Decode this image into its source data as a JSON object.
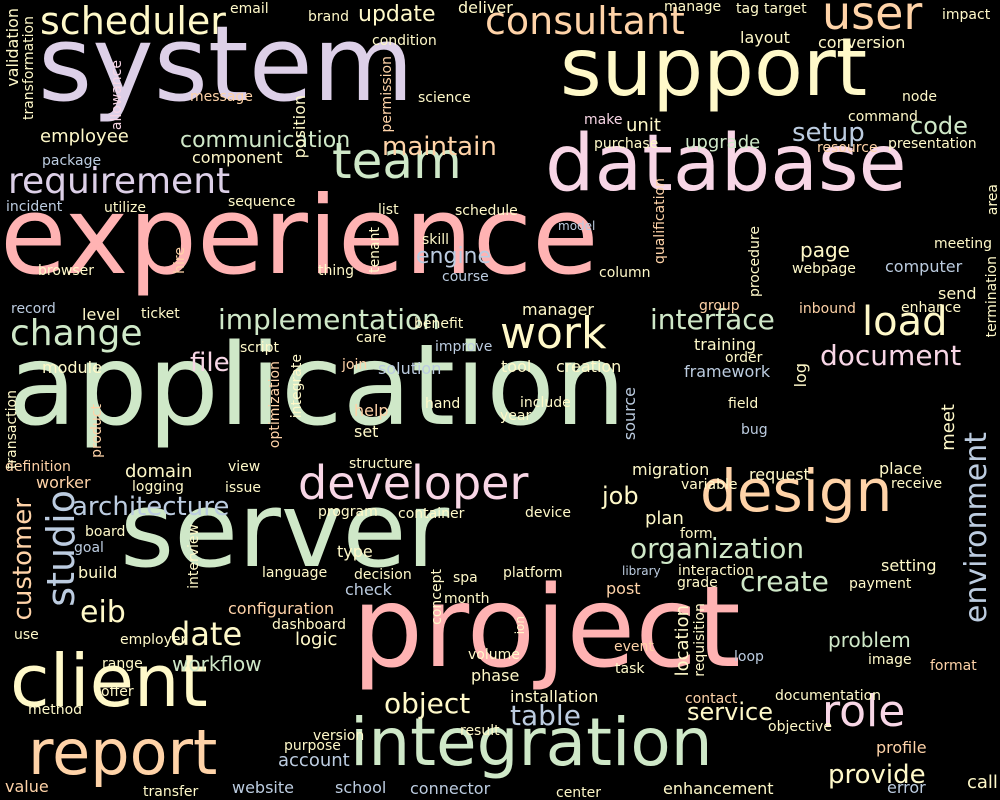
{
  "background": "#000000",
  "palette": {
    "pink": "#ffb3b3",
    "green": "#cfe8c8",
    "lavender": "#ddd0e8",
    "yellow": "#fff9c9",
    "peach": "#ffd3a8",
    "blue": "#bccce0",
    "rose": "#f8d6e6"
  },
  "words": [
    {
      "text": "experience",
      "color": "pink"
    },
    {
      "text": "application",
      "color": "green"
    },
    {
      "text": "system",
      "color": "lavender"
    },
    {
      "text": "project",
      "color": "pink"
    },
    {
      "text": "server",
      "color": "green"
    },
    {
      "text": "support",
      "color": "yellow"
    },
    {
      "text": "database",
      "color": "rose"
    },
    {
      "text": "client",
      "color": "yellow"
    },
    {
      "text": "integration",
      "color": "green"
    },
    {
      "text": "report",
      "color": "peach"
    },
    {
      "text": "design",
      "color": "peach"
    },
    {
      "text": "team",
      "color": "green"
    },
    {
      "text": "developer",
      "color": "rose"
    },
    {
      "text": "consultant",
      "color": "peach"
    },
    {
      "text": "user",
      "color": "peach"
    },
    {
      "text": "scheduler",
      "color": "yellow"
    },
    {
      "text": "requirement",
      "color": "lavender"
    },
    {
      "text": "role",
      "color": "rose"
    },
    {
      "text": "change",
      "color": "green"
    },
    {
      "text": "work",
      "color": "yellow"
    },
    {
      "text": "load",
      "color": "yellow"
    },
    {
      "text": "implementation",
      "color": "green"
    },
    {
      "text": "environment",
      "color": "blue"
    },
    {
      "text": "studio",
      "color": "blue"
    },
    {
      "text": "date",
      "color": "yellow"
    },
    {
      "text": "eib",
      "color": "yellow"
    },
    {
      "text": "customer",
      "color": "peach"
    },
    {
      "text": "interface",
      "color": "green"
    },
    {
      "text": "organization",
      "color": "green"
    },
    {
      "text": "architecture",
      "color": "blue"
    },
    {
      "text": "table",
      "color": "blue"
    },
    {
      "text": "object",
      "color": "yellow"
    },
    {
      "text": "document",
      "color": "rose"
    },
    {
      "text": "create",
      "color": "green"
    },
    {
      "text": "provide",
      "color": "yellow"
    },
    {
      "text": "maintain",
      "color": "peach"
    },
    {
      "text": "setup",
      "color": "blue"
    },
    {
      "text": "code",
      "color": "green"
    },
    {
      "text": "update",
      "color": "yellow"
    },
    {
      "text": "communication",
      "color": "green"
    },
    {
      "text": "file",
      "color": "rose"
    },
    {
      "text": "engine",
      "color": "blue"
    },
    {
      "text": "job",
      "color": "yellow"
    },
    {
      "text": "service",
      "color": "yellow"
    },
    {
      "text": "workflow",
      "color": "green"
    },
    {
      "text": "problem",
      "color": "green"
    },
    {
      "text": "page",
      "color": "yellow"
    },
    {
      "text": "upgrade",
      "color": "green"
    },
    {
      "text": "component",
      "color": "yellow"
    },
    {
      "text": "employee",
      "color": "yellow"
    },
    {
      "text": "unit",
      "color": "yellow"
    },
    {
      "text": "brand",
      "color": "yellow"
    },
    {
      "text": "deliver",
      "color": "yellow"
    },
    {
      "text": "position",
      "color": "yellow"
    },
    {
      "text": "email",
      "color": "yellow"
    },
    {
      "text": "manage",
      "color": "yellow"
    },
    {
      "text": "tag",
      "color": "yellow"
    },
    {
      "text": "target",
      "color": "yellow"
    },
    {
      "text": "impact",
      "color": "yellow"
    },
    {
      "text": "conversion",
      "color": "yellow"
    },
    {
      "text": "layout",
      "color": "yellow"
    },
    {
      "text": "condition",
      "color": "yellow"
    },
    {
      "text": "message",
      "color": "peach"
    },
    {
      "text": "science",
      "color": "yellow"
    },
    {
      "text": "node",
      "color": "yellow"
    },
    {
      "text": "command",
      "color": "yellow"
    },
    {
      "text": "resource",
      "color": "peach"
    },
    {
      "text": "presentation",
      "color": "yellow"
    },
    {
      "text": "make",
      "color": "rose"
    },
    {
      "text": "purchase",
      "color": "yellow"
    },
    {
      "text": "package",
      "color": "blue"
    },
    {
      "text": "incident",
      "color": "blue"
    },
    {
      "text": "utilize",
      "color": "yellow"
    },
    {
      "text": "sequence",
      "color": "yellow"
    },
    {
      "text": "list",
      "color": "yellow"
    },
    {
      "text": "schedule",
      "color": "yellow"
    },
    {
      "text": "skill",
      "color": "yellow"
    },
    {
      "text": "model",
      "color": "blue"
    },
    {
      "text": "browser",
      "color": "yellow"
    },
    {
      "text": "thing",
      "color": "yellow"
    },
    {
      "text": "course",
      "color": "blue"
    },
    {
      "text": "column",
      "color": "yellow"
    },
    {
      "text": "meeting",
      "color": "yellow"
    },
    {
      "text": "webpage",
      "color": "yellow"
    },
    {
      "text": "computer",
      "color": "blue"
    },
    {
      "text": "send",
      "color": "yellow"
    },
    {
      "text": "record",
      "color": "blue"
    },
    {
      "text": "level",
      "color": "yellow"
    },
    {
      "text": "ticket",
      "color": "yellow"
    },
    {
      "text": "benefit",
      "color": "yellow"
    },
    {
      "text": "manager",
      "color": "yellow"
    },
    {
      "text": "group",
      "color": "peach"
    },
    {
      "text": "inbound",
      "color": "peach"
    },
    {
      "text": "enhance",
      "color": "yellow"
    },
    {
      "text": "script",
      "color": "yellow"
    },
    {
      "text": "care",
      "color": "yellow"
    },
    {
      "text": "improve",
      "color": "blue"
    },
    {
      "text": "training",
      "color": "yellow"
    },
    {
      "text": "order",
      "color": "yellow"
    },
    {
      "text": "module",
      "color": "yellow"
    },
    {
      "text": "join",
      "color": "peach"
    },
    {
      "text": "solution",
      "color": "blue"
    },
    {
      "text": "tool",
      "color": "yellow"
    },
    {
      "text": "creation",
      "color": "yellow"
    },
    {
      "text": "framework",
      "color": "blue"
    },
    {
      "text": "hand",
      "color": "yellow"
    },
    {
      "text": "include",
      "color": "yellow"
    },
    {
      "text": "year",
      "color": "yellow"
    },
    {
      "text": "help",
      "color": "peach"
    },
    {
      "text": "set",
      "color": "yellow"
    },
    {
      "text": "field",
      "color": "yellow"
    },
    {
      "text": "bug",
      "color": "blue"
    },
    {
      "text": "meet",
      "color": "yellow"
    },
    {
      "text": "definition",
      "color": "peach"
    },
    {
      "text": "domain",
      "color": "yellow"
    },
    {
      "text": "view",
      "color": "yellow"
    },
    {
      "text": "structure",
      "color": "yellow"
    },
    {
      "text": "migration",
      "color": "yellow"
    },
    {
      "text": "request",
      "color": "yellow"
    },
    {
      "text": "place",
      "color": "yellow"
    },
    {
      "text": "worker",
      "color": "peach"
    },
    {
      "text": "logging",
      "color": "yellow"
    },
    {
      "text": "issue",
      "color": "yellow"
    },
    {
      "text": "variable",
      "color": "yellow"
    },
    {
      "text": "receive",
      "color": "yellow"
    },
    {
      "text": "program",
      "color": "yellow"
    },
    {
      "text": "container",
      "color": "yellow"
    },
    {
      "text": "device",
      "color": "yellow"
    },
    {
      "text": "board",
      "color": "yellow"
    },
    {
      "text": "goal",
      "color": "blue"
    },
    {
      "text": "plan",
      "color": "yellow"
    },
    {
      "text": "form",
      "color": "yellow"
    },
    {
      "text": "type",
      "color": "yellow"
    },
    {
      "text": "build",
      "color": "yellow"
    },
    {
      "text": "language",
      "color": "yellow"
    },
    {
      "text": "decision",
      "color": "yellow"
    },
    {
      "text": "spa",
      "color": "yellow"
    },
    {
      "text": "platform",
      "color": "yellow"
    },
    {
      "text": "library",
      "color": "blue"
    },
    {
      "text": "interaction",
      "color": "yellow"
    },
    {
      "text": "setting",
      "color": "yellow"
    },
    {
      "text": "check",
      "color": "blue"
    },
    {
      "text": "month",
      "color": "yellow"
    },
    {
      "text": "post",
      "color": "peach"
    },
    {
      "text": "grade",
      "color": "yellow"
    },
    {
      "text": "payment",
      "color": "yellow"
    },
    {
      "text": "configuration",
      "color": "peach"
    },
    {
      "text": "use",
      "color": "yellow"
    },
    {
      "text": "employer",
      "color": "yellow"
    },
    {
      "text": "dashboard",
      "color": "yellow"
    },
    {
      "text": "logic",
      "color": "yellow"
    },
    {
      "text": "event",
      "color": "peach"
    },
    {
      "text": "task",
      "color": "yellow"
    },
    {
      "text": "loop",
      "color": "blue"
    },
    {
      "text": "image",
      "color": "yellow"
    },
    {
      "text": "format",
      "color": "peach"
    },
    {
      "text": "range",
      "color": "yellow"
    },
    {
      "text": "offer",
      "color": "yellow"
    },
    {
      "text": "volume",
      "color": "yellow"
    },
    {
      "text": "phase",
      "color": "yellow"
    },
    {
      "text": "installation",
      "color": "yellow"
    },
    {
      "text": "contact",
      "color": "peach"
    },
    {
      "text": "documentation",
      "color": "yellow"
    },
    {
      "text": "method",
      "color": "yellow"
    },
    {
      "text": "version",
      "color": "yellow"
    },
    {
      "text": "purpose",
      "color": "yellow"
    },
    {
      "text": "account",
      "color": "blue"
    },
    {
      "text": "result",
      "color": "yellow"
    },
    {
      "text": "objective",
      "color": "yellow"
    },
    {
      "text": "profile",
      "color": "peach"
    },
    {
      "text": "value",
      "color": "peach"
    },
    {
      "text": "transfer",
      "color": "yellow"
    },
    {
      "text": "website",
      "color": "blue"
    },
    {
      "text": "school",
      "color": "blue"
    },
    {
      "text": "connector",
      "color": "blue"
    },
    {
      "text": "center",
      "color": "yellow"
    },
    {
      "text": "enhancement",
      "color": "yellow"
    },
    {
      "text": "error",
      "color": "blue"
    },
    {
      "text": "call",
      "color": "yellow"
    },
    {
      "text": "validation",
      "color": "yellow"
    },
    {
      "text": "transformation",
      "color": "yellow"
    },
    {
      "text": "allowance",
      "color": "rose"
    },
    {
      "text": "permission",
      "color": "peach"
    },
    {
      "text": "qualification",
      "color": "peach"
    },
    {
      "text": "procedure",
      "color": "yellow"
    },
    {
      "text": "area",
      "color": "yellow"
    },
    {
      "text": "tenant",
      "color": "yellow"
    },
    {
      "text": "hire",
      "color": "peach"
    },
    {
      "text": "termination",
      "color": "yellow"
    },
    {
      "text": "optimization",
      "color": "peach"
    },
    {
      "text": "integrate",
      "color": "yellow"
    },
    {
      "text": "source",
      "color": "blue"
    },
    {
      "text": "log",
      "color": "yellow"
    },
    {
      "text": "transaction",
      "color": "yellow"
    },
    {
      "text": "product",
      "color": "peach"
    },
    {
      "text": "interview",
      "color": "yellow"
    },
    {
      "text": "concept",
      "color": "yellow"
    },
    {
      "text": "ion",
      "color": "yellow"
    },
    {
      "text": "location",
      "color": "yellow"
    },
    {
      "text": "requisition",
      "color": "yellow"
    }
  ]
}
